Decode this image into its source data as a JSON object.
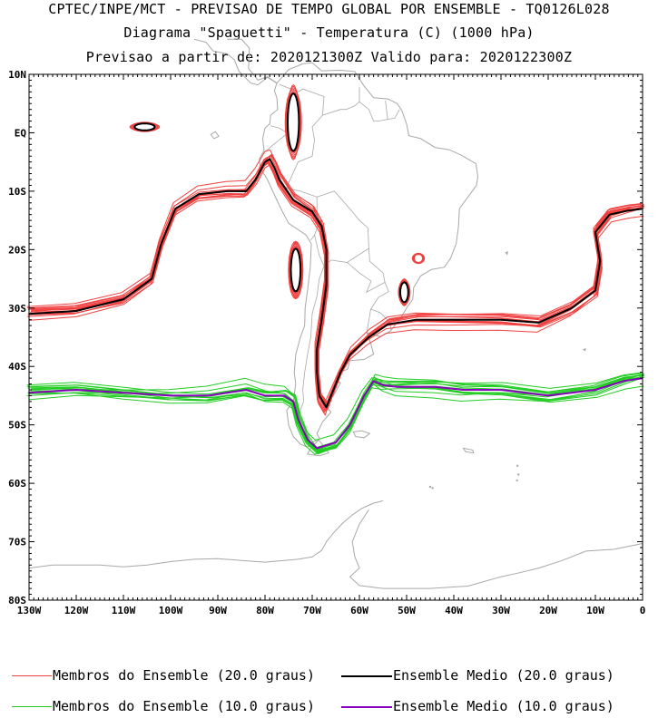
{
  "header": {
    "line1": "CPTEC/INPE/MCT - PREVISAO DE TEMPO GLOBAL POR ENSEMBLE - TQ0126L028",
    "line2": "Diagrama \"Spaguetti\" - Temperatura (C) (1000 hPa)",
    "line3": "Previsao a partir de: 2020121300Z  Valido para: 2020122300Z"
  },
  "axes": {
    "lat_labels": [
      "10N",
      "EQ",
      "10S",
      "20S",
      "30S",
      "40S",
      "50S",
      "60S",
      "70S",
      "80S"
    ],
    "lon_labels": [
      "130W",
      "120W",
      "110W",
      "100W",
      "90W",
      "80W",
      "70W",
      "60W",
      "50W",
      "40W",
      "30W",
      "20W",
      "10W",
      "0"
    ]
  },
  "legend": {
    "members_20": "Membros do Ensemble (20.0 graus)",
    "mean_20": "Ensemble Medio (20.0 graus)",
    "members_10": "Membros do Ensemble (10.0 graus)",
    "mean_10": "Ensemble Medio (10.0 graus)"
  },
  "colors": {
    "members_20": "#f04040",
    "mean_20": "#000000",
    "members_10": "#22cc22",
    "mean_10": "#8800bb",
    "coastline": "#a8a8a8"
  },
  "map_data": {
    "lon_range": [
      -130,
      0
    ],
    "lat_range": [
      -80,
      10
    ],
    "isotherm_20_mean": [
      [
        -130,
        -31
      ],
      [
        -120,
        -30.5
      ],
      [
        -110,
        -28.5
      ],
      [
        -104,
        -25
      ],
      [
        -102,
        -19
      ],
      [
        -99,
        -13
      ],
      [
        -94,
        -10.5
      ],
      [
        -88,
        -10
      ],
      [
        -84,
        -10
      ],
      [
        -82,
        -8
      ],
      [
        -80,
        -5
      ],
      [
        -79,
        -4.5
      ],
      [
        -78,
        -6
      ],
      [
        -77,
        -8
      ],
      [
        -74,
        -11.5
      ],
      [
        -70,
        -13.5
      ],
      [
        -68,
        -16
      ],
      [
        -67,
        -20
      ],
      [
        -67,
        -26
      ],
      [
        -68,
        -32
      ],
      [
        -69,
        -37
      ],
      [
        -69,
        -41
      ],
      [
        -68.5,
        -45
      ],
      [
        -67,
        -47
      ],
      [
        -66,
        -45
      ],
      [
        -64,
        -41
      ],
      [
        -62,
        -38
      ],
      [
        -58,
        -35
      ],
      [
        -54,
        -32.8
      ],
      [
        -48,
        -32
      ],
      [
        -40,
        -32
      ],
      [
        -30,
        -32
      ],
      [
        -22,
        -32.5
      ],
      [
        -15,
        -30
      ],
      [
        -10,
        -27
      ],
      [
        -9,
        -22
      ],
      [
        -10,
        -17
      ],
      [
        -7,
        -14
      ],
      [
        -3,
        -13.3
      ],
      [
        0,
        -13
      ]
    ],
    "isotherm_10_mean": [
      [
        -130,
        -44.5
      ],
      [
        -120,
        -44
      ],
      [
        -110,
        -44.5
      ],
      [
        -100,
        -45
      ],
      [
        -92,
        -45
      ],
      [
        -84,
        -44
      ],
      [
        -80,
        -45
      ],
      [
        -76,
        -45
      ],
      [
        -74,
        -46
      ],
      [
        -73,
        -49
      ],
      [
        -71,
        -52.5
      ],
      [
        -69,
        -54
      ],
      [
        -65,
        -53
      ],
      [
        -62,
        -50
      ],
      [
        -59,
        -45
      ],
      [
        -57,
        -42.5
      ],
      [
        -55,
        -43.2
      ],
      [
        -52,
        -43.5
      ],
      [
        -44,
        -43.5
      ],
      [
        -38,
        -44
      ],
      [
        -30,
        -44
      ],
      [
        -20,
        -45
      ],
      [
        -10,
        -44
      ],
      [
        -4,
        -42.5
      ],
      [
        0,
        -42
      ]
    ]
  }
}
